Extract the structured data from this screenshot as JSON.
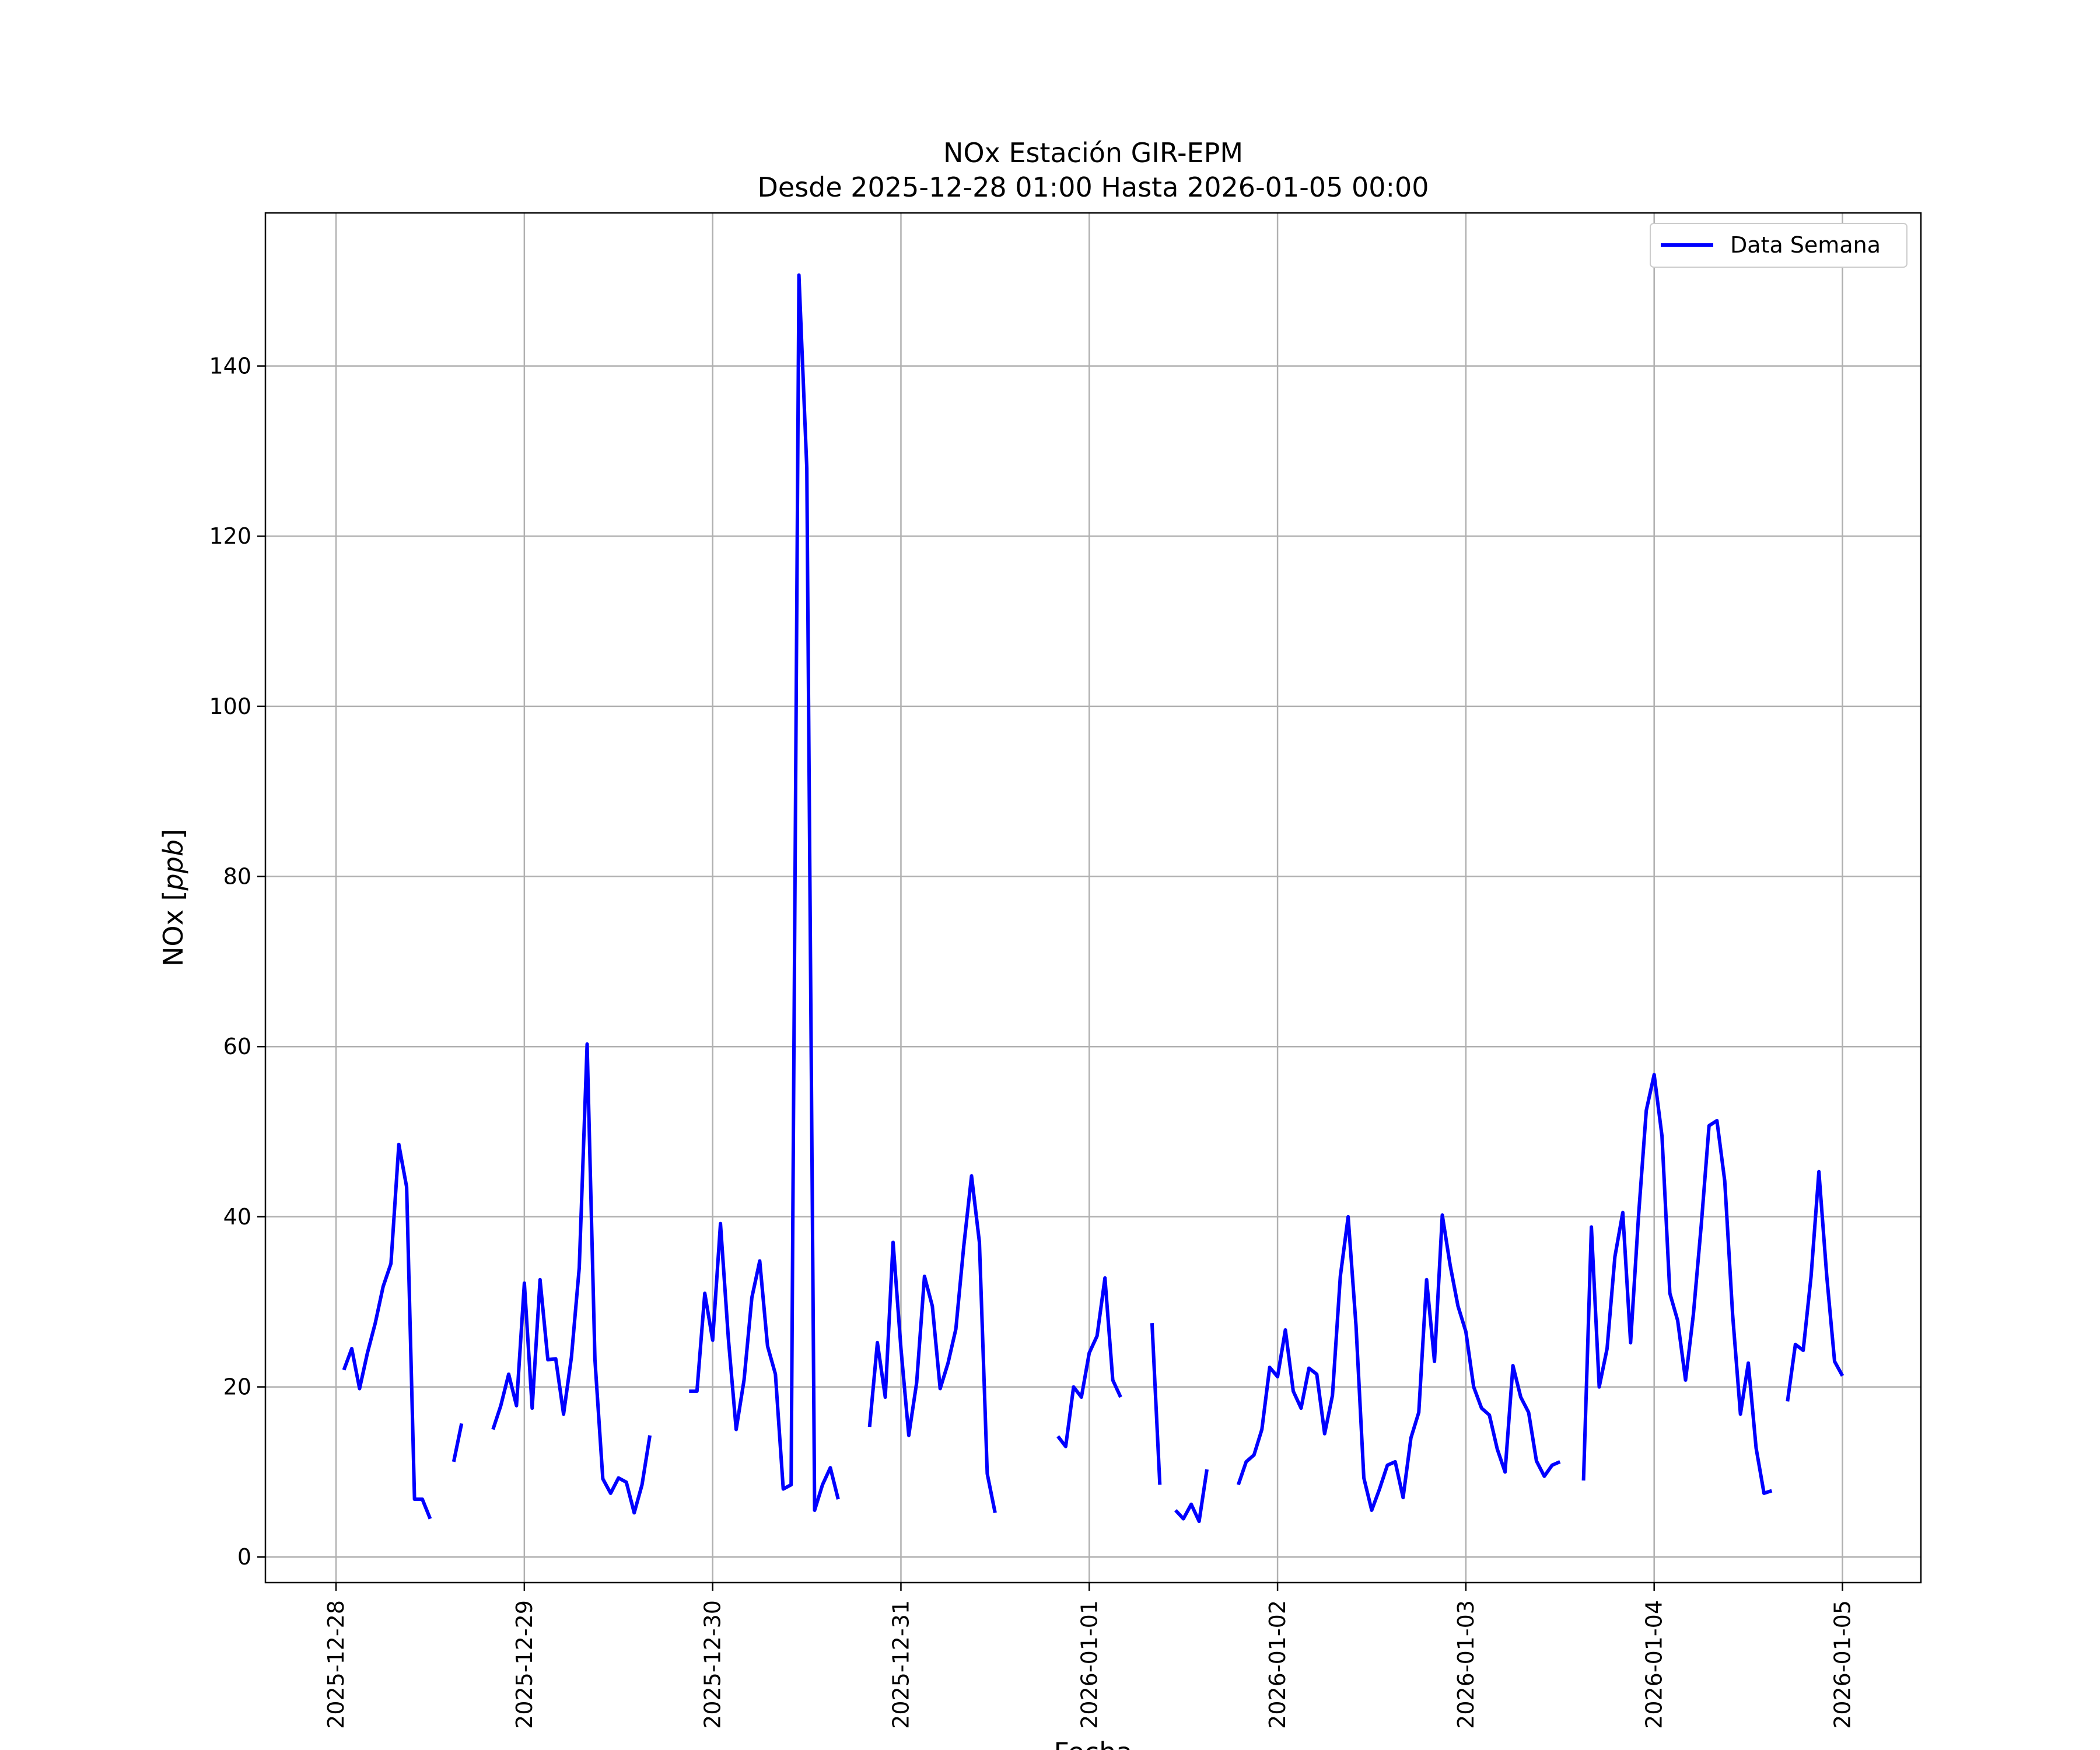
{
  "chart_data": {
    "type": "line",
    "title": "NOx Estación GIR-EPM",
    "subtitle": "Desde 2025-12-28 01:00 Hasta 2026-01-05 00:00",
    "xlabel": "Fecha",
    "ylabel_main": "NOx",
    "ylabel_unit": "ppb",
    "xlim": [
      "2025-12-27 15:00",
      "2026-01-05 10:00"
    ],
    "ylim": [
      -3,
      158
    ],
    "grid": true,
    "legend_position": "top-right",
    "x_ticks": [
      "2025-12-28",
      "2025-12-29",
      "2025-12-30",
      "2025-12-31",
      "2026-01-01",
      "2026-01-02",
      "2026-01-03",
      "2026-01-04",
      "2026-01-05"
    ],
    "y_ticks": [
      0,
      20,
      40,
      60,
      80,
      100,
      120,
      140
    ],
    "colors": {
      "series": "#0000ff",
      "grid": "#b0b0b0",
      "axes": "#000000"
    },
    "series": [
      {
        "name": "Data Semana",
        "segments": [
          [
            [
              "2025-12-28 01:00",
              22.0
            ],
            [
              "2025-12-28 02:00",
              24.5
            ],
            [
              "2025-12-28 03:00",
              19.8
            ],
            [
              "2025-12-28 04:00",
              24.0
            ],
            [
              "2025-12-28 05:00",
              27.5
            ],
            [
              "2025-12-28 06:00",
              31.8
            ],
            [
              "2025-12-28 07:00",
              34.5
            ],
            [
              "2025-12-28 08:00",
              48.5
            ],
            [
              "2025-12-28 09:00",
              43.5
            ],
            [
              "2025-12-28 10:00",
              6.8
            ],
            [
              "2025-12-28 11:00",
              6.8
            ],
            [
              "2025-12-28 12:00",
              4.5
            ]
          ],
          [
            [
              "2025-12-28 15:00",
              11.2
            ],
            [
              "2025-12-28 16:00",
              15.7
            ]
          ],
          [
            [
              "2025-12-28 20:00",
              15.0
            ],
            [
              "2025-12-28 21:00",
              17.8
            ],
            [
              "2025-12-28 22:00",
              21.5
            ],
            [
              "2025-12-28 23:00",
              17.8
            ],
            [
              "2025-12-29 00:00",
              32.2
            ],
            [
              "2025-12-29 01:00",
              17.5
            ],
            [
              "2025-12-29 02:00",
              32.6
            ],
            [
              "2025-12-29 03:00",
              23.2
            ],
            [
              "2025-12-29 04:00",
              23.3
            ],
            [
              "2025-12-29 05:00",
              16.8
            ],
            [
              "2025-12-29 06:00",
              23.5
            ],
            [
              "2025-12-29 07:00",
              34.0
            ],
            [
              "2025-12-29 08:00",
              60.3
            ],
            [
              "2025-12-29 09:00",
              23.2
            ],
            [
              "2025-12-29 10:00",
              9.2
            ],
            [
              "2025-12-29 11:00",
              7.5
            ],
            [
              "2025-12-29 12:00",
              9.3
            ],
            [
              "2025-12-29 13:00",
              8.8
            ],
            [
              "2025-12-29 14:00",
              5.2
            ],
            [
              "2025-12-29 15:00",
              8.5
            ],
            [
              "2025-12-29 16:00",
              14.3
            ]
          ],
          [
            [
              "2025-12-29 21:00",
              19.5
            ],
            [
              "2025-12-29 22:00",
              19.5
            ],
            [
              "2025-12-29 23:00",
              31.0
            ],
            [
              "2025-12-30 00:00",
              25.5
            ],
            [
              "2025-12-30 01:00",
              39.2
            ],
            [
              "2025-12-30 02:00",
              25.7
            ],
            [
              "2025-12-30 03:00",
              15.0
            ],
            [
              "2025-12-30 04:00",
              20.8
            ],
            [
              "2025-12-30 05:00",
              30.5
            ],
            [
              "2025-12-30 06:00",
              34.8
            ],
            [
              "2025-12-30 07:00",
              24.8
            ],
            [
              "2025-12-30 08:00",
              21.5
            ],
            [
              "2025-12-30 09:00",
              8.0
            ],
            [
              "2025-12-30 10:00",
              8.5
            ],
            [
              "2025-12-30 11:00",
              150.7
            ],
            [
              "2025-12-30 12:00",
              128.0
            ],
            [
              "2025-12-30 13:00",
              5.5
            ],
            [
              "2025-12-30 14:00",
              8.5
            ],
            [
              "2025-12-30 15:00",
              10.5
            ],
            [
              "2025-12-30 16:00",
              6.8
            ]
          ],
          [
            [
              "2025-12-30 20:00",
              15.3
            ],
            [
              "2025-12-30 21:00",
              25.2
            ],
            [
              "2025-12-30 22:00",
              18.8
            ],
            [
              "2025-12-30 23:00",
              37.0
            ],
            [
              "2025-12-31 00:00",
              24.5
            ],
            [
              "2025-12-31 01:00",
              14.3
            ],
            [
              "2025-12-31 02:00",
              20.5
            ],
            [
              "2025-12-31 03:00",
              33.0
            ],
            [
              "2025-12-31 04:00",
              29.5
            ],
            [
              "2025-12-31 05:00",
              19.8
            ],
            [
              "2025-12-31 06:00",
              22.8
            ],
            [
              "2025-12-31 07:00",
              26.8
            ],
            [
              "2025-12-31 08:00",
              36.5
            ],
            [
              "2025-12-31 09:00",
              44.8
            ],
            [
              "2025-12-31 10:00",
              37.0
            ],
            [
              "2025-12-31 11:00",
              9.8
            ],
            [
              "2025-12-31 12:00",
              5.2
            ]
          ],
          [
            [
              "2025-12-31 20:00",
              14.2
            ],
            [
              "2025-12-31 21:00",
              13.0
            ],
            [
              "2025-12-31 22:00",
              20.0
            ],
            [
              "2025-12-31 23:00",
              18.8
            ],
            [
              "2026-01-01 00:00",
              24.0
            ],
            [
              "2026-01-01 01:00",
              26.0
            ],
            [
              "2026-01-01 02:00",
              32.8
            ],
            [
              "2026-01-01 03:00",
              20.8
            ],
            [
              "2026-01-01 04:00",
              18.8
            ]
          ],
          [
            [
              "2026-01-01 08:00",
              27.5
            ],
            [
              "2026-01-01 09:00",
              8.5
            ]
          ],
          [
            [
              "2026-01-01 11:00",
              5.5
            ],
            [
              "2026-01-01 12:00",
              4.5
            ],
            [
              "2026-01-01 13:00",
              6.2
            ],
            [
              "2026-01-01 14:00",
              4.2
            ],
            [
              "2026-01-01 15:00",
              10.3
            ]
          ],
          [
            [
              "2026-01-01 19:00",
              8.5
            ],
            [
              "2026-01-01 20:00",
              11.2
            ],
            [
              "2026-01-01 21:00",
              12.0
            ],
            [
              "2026-01-01 22:00",
              15.0
            ],
            [
              "2026-01-01 23:00",
              22.3
            ],
            [
              "2026-01-02 00:00",
              21.2
            ],
            [
              "2026-01-02 01:00",
              26.7
            ],
            [
              "2026-01-02 02:00",
              19.5
            ],
            [
              "2026-01-02 03:00",
              17.5
            ],
            [
              "2026-01-02 04:00",
              22.2
            ],
            [
              "2026-01-02 05:00",
              21.5
            ],
            [
              "2026-01-02 06:00",
              14.5
            ],
            [
              "2026-01-02 07:00",
              19.0
            ],
            [
              "2026-01-02 08:00",
              33.0
            ],
            [
              "2026-01-02 09:00",
              40.0
            ],
            [
              "2026-01-02 10:00",
              27.2
            ],
            [
              "2026-01-02 11:00",
              9.3
            ],
            [
              "2026-01-02 12:00",
              5.5
            ],
            [
              "2026-01-02 13:00",
              8.0
            ],
            [
              "2026-01-02 14:00",
              10.8
            ],
            [
              "2026-01-02 15:00",
              11.2
            ],
            [
              "2026-01-02 16:00",
              7.0
            ],
            [
              "2026-01-02 17:00",
              14.0
            ],
            [
              "2026-01-02 18:00",
              17.0
            ],
            [
              "2026-01-02 19:00",
              32.6
            ],
            [
              "2026-01-02 20:00",
              23.0
            ],
            [
              "2026-01-02 21:00",
              40.2
            ],
            [
              "2026-01-02 22:00",
              34.3
            ],
            [
              "2026-01-02 23:00",
              29.5
            ],
            [
              "2026-01-03 00:00",
              26.5
            ],
            [
              "2026-01-03 01:00",
              20.0
            ],
            [
              "2026-01-03 02:00",
              17.5
            ],
            [
              "2026-01-03 03:00",
              16.7
            ],
            [
              "2026-01-03 04:00",
              12.7
            ],
            [
              "2026-01-03 05:00",
              10.0
            ],
            [
              "2026-01-03 06:00",
              22.5
            ],
            [
              "2026-01-03 07:00",
              18.8
            ],
            [
              "2026-01-03 08:00",
              17.0
            ],
            [
              "2026-01-03 09:00",
              11.3
            ],
            [
              "2026-01-03 10:00",
              9.5
            ],
            [
              "2026-01-03 11:00",
              10.8
            ],
            [
              "2026-01-03 12:00",
              11.2
            ]
          ],
          [
            [
              "2026-01-03 15:00",
              9.0
            ],
            [
              "2026-01-03 16:00",
              38.8
            ],
            [
              "2026-01-03 17:00",
              20.0
            ],
            [
              "2026-01-03 18:00",
              24.5
            ],
            [
              "2026-01-03 19:00",
              35.3
            ],
            [
              "2026-01-03 20:00",
              40.5
            ],
            [
              "2026-01-03 21:00",
              25.2
            ],
            [
              "2026-01-03 22:00",
              40.0
            ],
            [
              "2026-01-03 23:00",
              52.5
            ],
            [
              "2026-01-04 00:00",
              56.7
            ],
            [
              "2026-01-04 01:00",
              49.5
            ],
            [
              "2026-01-04 02:00",
              31.0
            ],
            [
              "2026-01-04 03:00",
              27.8
            ],
            [
              "2026-01-04 04:00",
              20.8
            ],
            [
              "2026-01-04 05:00",
              28.5
            ],
            [
              "2026-01-04 06:00",
              39.0
            ],
            [
              "2026-01-04 07:00",
              50.7
            ],
            [
              "2026-01-04 08:00",
              51.3
            ],
            [
              "2026-01-04 09:00",
              44.2
            ],
            [
              "2026-01-04 10:00",
              28.5
            ],
            [
              "2026-01-04 11:00",
              16.8
            ],
            [
              "2026-01-04 12:00",
              22.8
            ],
            [
              "2026-01-04 13:00",
              12.8
            ],
            [
              "2026-01-04 14:00",
              7.5
            ],
            [
              "2026-01-04 15:00",
              7.8
            ]
          ],
          [
            [
              "2026-01-04 17:00",
              18.3
            ],
            [
              "2026-01-04 18:00",
              25.0
            ],
            [
              "2026-01-04 19:00",
              24.3
            ],
            [
              "2026-01-04 20:00",
              33.0
            ],
            [
              "2026-01-04 21:00",
              45.3
            ],
            [
              "2026-01-04 22:00",
              33.0
            ],
            [
              "2026-01-04 23:00",
              23.0
            ],
            [
              "2026-01-05 00:00",
              21.3
            ]
          ]
        ]
      }
    ]
  }
}
